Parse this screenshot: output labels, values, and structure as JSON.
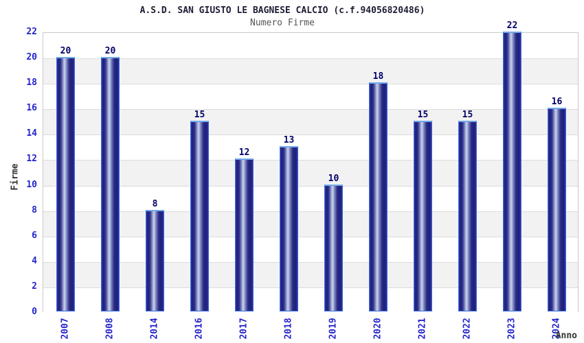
{
  "chart_data": {
    "type": "bar",
    "title": "A.S.D. SAN GIUSTO LE BAGNESE CALCIO (c.f.94056820486)",
    "subtitle": "Numero Firme",
    "xlabel": "Anno",
    "ylabel": "Firme",
    "categories": [
      "2007",
      "2008",
      "2014",
      "2016",
      "2017",
      "2018",
      "2019",
      "2020",
      "2021",
      "2022",
      "2023",
      "2024"
    ],
    "values": [
      20,
      20,
      8,
      15,
      12,
      13,
      10,
      18,
      15,
      15,
      22,
      16
    ],
    "ylim": [
      0,
      22
    ],
    "ytick_step": 2,
    "yticks": [
      0,
      2,
      4,
      6,
      8,
      10,
      12,
      14,
      16,
      18,
      20,
      22
    ],
    "grid": true,
    "legend_position": "none",
    "band_fill_alternating": true,
    "colors": {
      "tick_label": "#2424cc",
      "value_label": "#00006a",
      "title": "#1c1c34",
      "subtitle": "#555555",
      "axis_label": "#333333",
      "band_light": "#ffffff",
      "band_dark": "#f2f2f2",
      "gridline": "#dcdcdc",
      "plot_border": "#c9c9c9",
      "bar_dark": "#1e1e7c",
      "bar_mid": "#7b86be",
      "bar_light": "#c2cae8",
      "bar_border": "#3a6fe0",
      "bar_cap": "#74a9ea"
    }
  }
}
